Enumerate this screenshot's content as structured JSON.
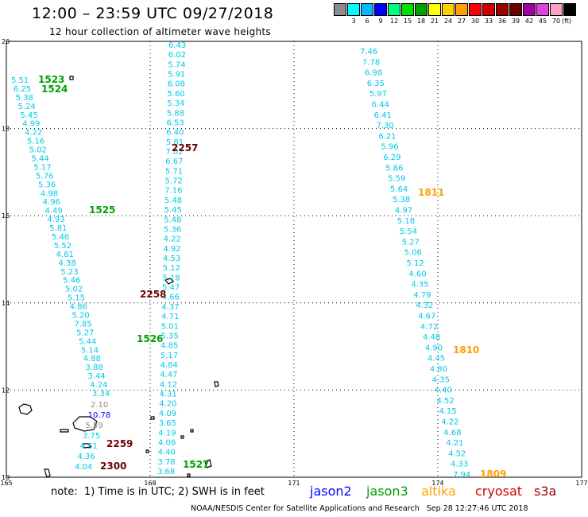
{
  "header": {
    "title": "12:00 – 23:59 UTC 09/27/2018",
    "subtitle": "12 hour collection of altimeter wave heights"
  },
  "colorbar": {
    "unit": "(ft)",
    "bins": [
      {
        "label": "",
        "color": "#8c8c8c"
      },
      {
        "label": "3",
        "color": "#00ffff"
      },
      {
        "label": "6",
        "color": "#00b8ff"
      },
      {
        "label": "9",
        "color": "#0000ff"
      },
      {
        "label": "12",
        "color": "#00ff7f"
      },
      {
        "label": "15",
        "color": "#00e000"
      },
      {
        "label": "18",
        "color": "#00a000"
      },
      {
        "label": "21",
        "color": "#ffff00"
      },
      {
        "label": "24",
        "color": "#ffd000"
      },
      {
        "label": "27",
        "color": "#ffa000"
      },
      {
        "label": "30",
        "color": "#ff0000"
      },
      {
        "label": "33",
        "color": "#d00000"
      },
      {
        "label": "36",
        "color": "#a00000"
      },
      {
        "label": "39",
        "color": "#700000"
      },
      {
        "label": "42",
        "color": "#a000a0"
      },
      {
        "label": "45",
        "color": "#e040e0"
      },
      {
        "label": "70",
        "color": "#ff9ec8"
      },
      {
        "label": "",
        "color": "#000000"
      }
    ]
  },
  "map": {
    "lon_range": [
      165,
      177
    ],
    "lat_range": [
      10,
      20
    ],
    "lon_ticks": [
      "165",
      "168",
      "171",
      "174",
      "177"
    ],
    "lat_ticks": [
      "20",
      "18",
      "16",
      "14",
      "12",
      "10"
    ],
    "label_color": "#00c8e8",
    "track_a_values": [
      "5.51",
      "6.25",
      "5.38",
      "5.24",
      "5.45",
      "4.99",
      "4.22",
      "5.16",
      "5.02",
      "5.44",
      "5.17",
      "5.76",
      "5.36",
      "4.98",
      "4.96",
      "4.49",
      "4.93",
      "5.81",
      "5.46",
      "5.52",
      "4.81",
      "4.38",
      "5.23",
      "5.46",
      "5.02",
      "5.15",
      "4.86",
      "5.20",
      "7.85",
      "5.27",
      "5.44",
      "5.14",
      "4.88",
      "3.88",
      "3.44",
      "4.24",
      "3.34"
    ],
    "track_b_values": [
      "6.43",
      "6.02",
      "5.74",
      "5.91",
      "6.08",
      "5.60",
      "5.34",
      "5.88",
      "6.53",
      "6.40",
      "5.81",
      "7.02",
      "6.67",
      "5.71",
      "5.72",
      "7.16",
      "5.48",
      "5.45",
      "5.48",
      "5.36",
      "4.22",
      "4.92",
      "4.53",
      "5.12",
      "5.18",
      "5.47",
      "4.66",
      "4.37",
      "4.71",
      "5.01",
      "5.35",
      "4.85",
      "5.17",
      "4.84",
      "4.47",
      "4.12",
      "4.31",
      "4.20",
      "4.09",
      "3.65",
      "4.19",
      "4.06",
      "4.40",
      "3.78",
      "3.68"
    ],
    "track_c_values": [
      "7.46",
      "7.78",
      "6.98",
      "6.35",
      "5.97",
      "6.44",
      "6.41",
      "7.30",
      "6.21",
      "5.96",
      "6.29",
      "5.86",
      "5.59",
      "5.64",
      "5.38",
      "4.97",
      "5.18",
      "5.54",
      "5.27",
      "5.06",
      "5.12",
      "4.60",
      "4.35",
      "4.79",
      "4.32",
      "4.67",
      "4.72",
      "4.48",
      "4.90",
      "4.45",
      "4.80",
      "4.35",
      "4.40",
      "4.52",
      "4.15",
      "4.22",
      "4.68",
      "4.21",
      "4.52",
      "4.33",
      "7.94"
    ],
    "track_d_values": [
      "2.10",
      "10.78",
      "5.59",
      "3.75",
      "4.51",
      "4.36",
      "4.04"
    ],
    "track_d_colors": [
      "#8c8c8c",
      "#0000ff",
      "#8c8c8c",
      "#00c8e8",
      "#00c8e8",
      "#00c8e8",
      "#00c8e8"
    ],
    "time_labels": [
      {
        "text": "1523",
        "color": "#00a000"
      },
      {
        "text": "1524",
        "color": "#00a000"
      },
      {
        "text": "1525",
        "color": "#00a000"
      },
      {
        "text": "1526",
        "color": "#00a000"
      },
      {
        "text": "1527",
        "color": "#00a000"
      },
      {
        "text": "2257",
        "color": "#700000"
      },
      {
        "text": "2258",
        "color": "#700000"
      },
      {
        "text": "2259",
        "color": "#700000"
      },
      {
        "text": "2300",
        "color": "#700000"
      },
      {
        "text": "1811",
        "color": "#ffa000"
      },
      {
        "text": "1810",
        "color": "#ffa000"
      },
      {
        "text": "1809",
        "color": "#ffa000"
      }
    ]
  },
  "footer": {
    "note": "note:  1) Time is in UTC; 2) SWH is in feet",
    "legend": [
      {
        "name": "jason2",
        "color": "#0000ff"
      },
      {
        "name": "jason3",
        "color": "#00a000"
      },
      {
        "name": "altika",
        "color": "#ffa000"
      },
      {
        "name": "cryosat",
        "color": "#d00000"
      },
      {
        "name": "s3a",
        "color": "#a00000"
      }
    ],
    "credit": "NOAA/NESDIS Center for Satellite Applications and Research   Sep 28 12:27:46 UTC 2018"
  }
}
